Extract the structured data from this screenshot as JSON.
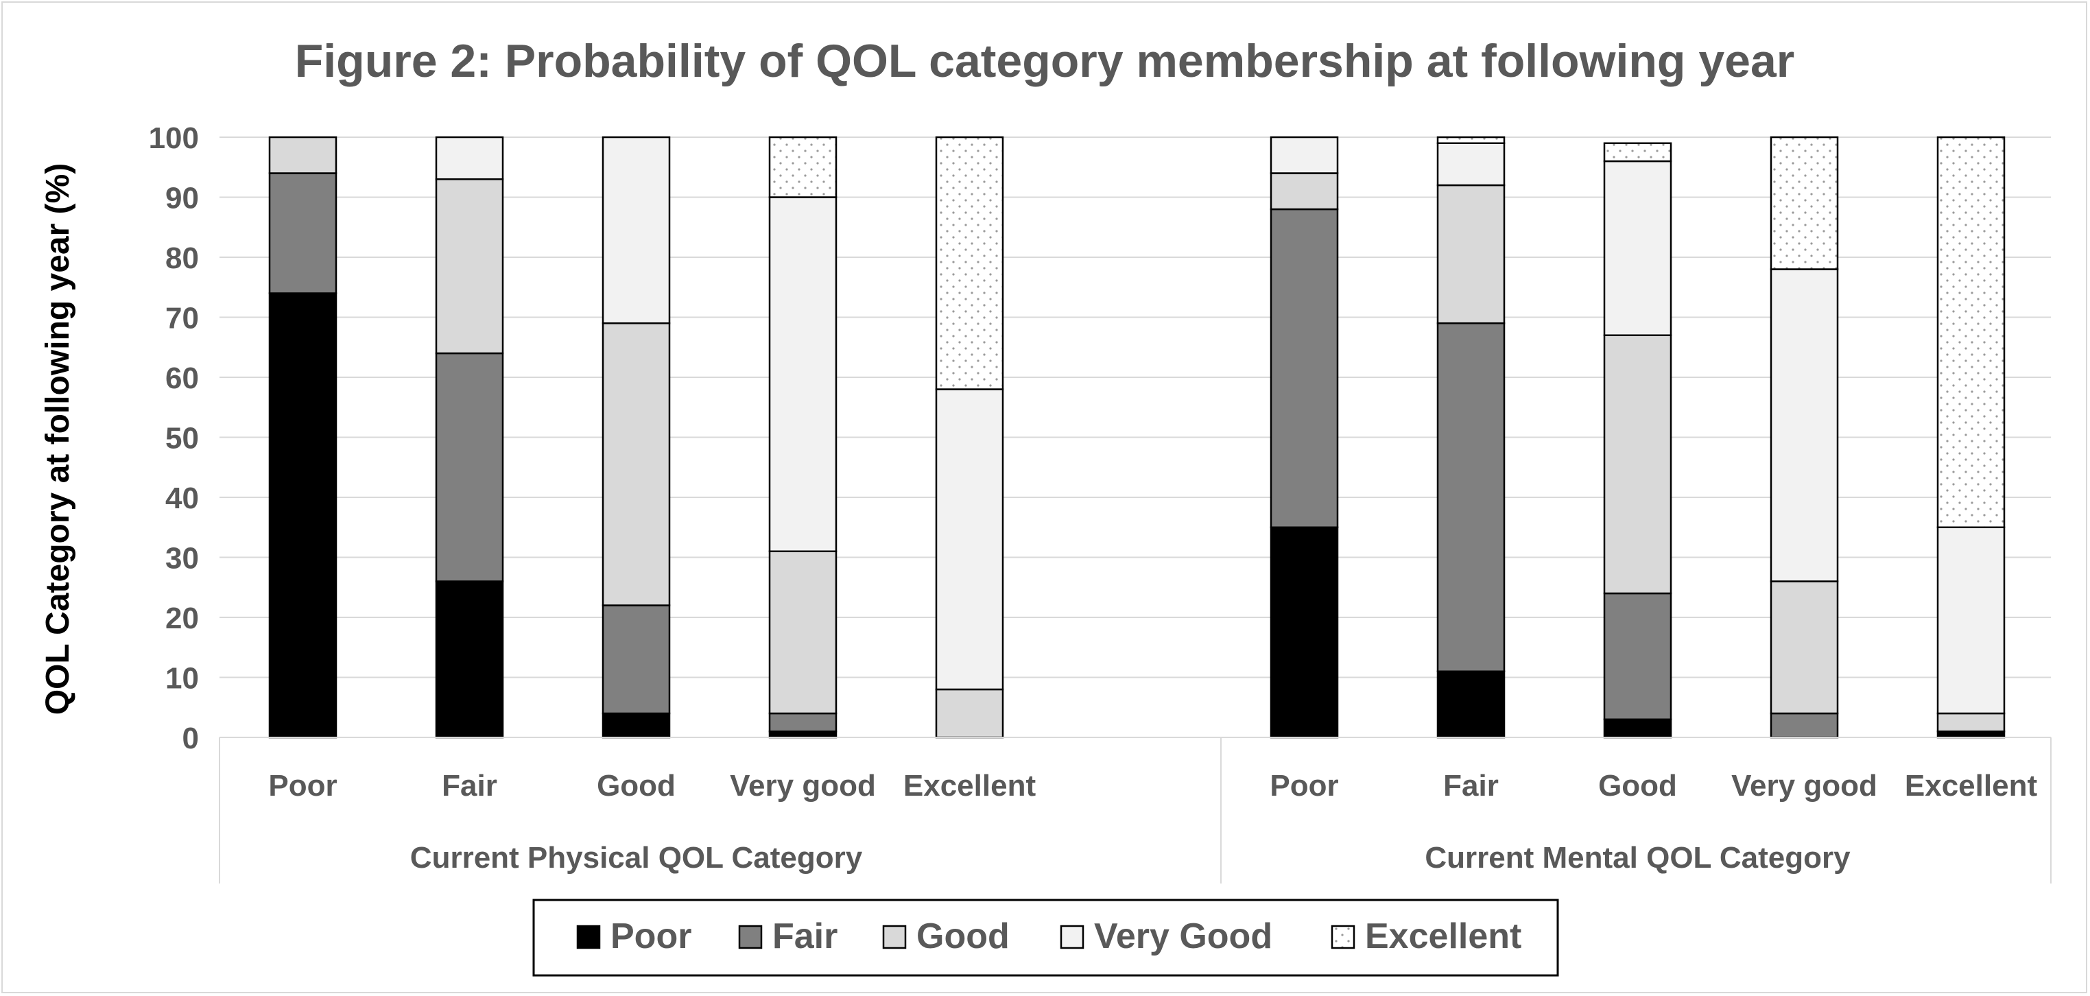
{
  "chart_data": {
    "type": "bar",
    "stacked": true,
    "title": "Figure 2: Probability of QOL category membership at following year",
    "ylabel": "QOL Category at following year (%)",
    "xlabel": "",
    "ylim": [
      0,
      100
    ],
    "yticks": [
      0,
      10,
      20,
      30,
      40,
      50,
      60,
      70,
      80,
      90,
      100
    ],
    "grid": true,
    "legend_position": "bottom",
    "groups": [
      {
        "label": "Current Physical QOL Category",
        "categories": [
          "Poor",
          "Fair",
          "Good",
          "Very good",
          "Excellent"
        ],
        "series": [
          {
            "name": "Poor",
            "values": [
              74,
              26,
              4,
              1,
              0
            ]
          },
          {
            "name": "Fair",
            "values": [
              20,
              38,
              18,
              3,
              0
            ]
          },
          {
            "name": "Good",
            "values": [
              6,
              29,
              47,
              27,
              8
            ]
          },
          {
            "name": "Very Good",
            "values": [
              0,
              7,
              31,
              59,
              50
            ]
          },
          {
            "name": "Excellent",
            "values": [
              0,
              0,
              0,
              10,
              42
            ]
          }
        ]
      },
      {
        "label": "Current Mental QOL Category",
        "categories": [
          "Poor",
          "Fair",
          "Good",
          "Very good",
          "Excellent"
        ],
        "series": [
          {
            "name": "Poor",
            "values": [
              35,
              11,
              3,
              0,
              1
            ]
          },
          {
            "name": "Fair",
            "values": [
              53,
              58,
              21,
              4,
              0
            ]
          },
          {
            "name": "Good",
            "values": [
              6,
              23,
              43,
              22,
              3
            ]
          },
          {
            "name": "Very Good",
            "values": [
              6,
              7,
              29,
              52,
              31
            ]
          },
          {
            "name": "Excellent",
            "values": [
              0,
              1,
              3,
              22,
              65
            ]
          }
        ]
      }
    ],
    "series_styles": [
      {
        "name": "Poor",
        "fill": "#000000",
        "pattern": "solid"
      },
      {
        "name": "Fair",
        "fill": "#808080",
        "pattern": "solid"
      },
      {
        "name": "Good",
        "fill": "#d9d9d9",
        "pattern": "solid"
      },
      {
        "name": "Very Good",
        "fill": "#f2f2f2",
        "pattern": "solid"
      },
      {
        "name": "Excellent",
        "fill": "#ffffff",
        "pattern": "dotted"
      }
    ],
    "legend": [
      "Poor",
      "Fair",
      "Good",
      "Very Good",
      "Excellent"
    ]
  }
}
